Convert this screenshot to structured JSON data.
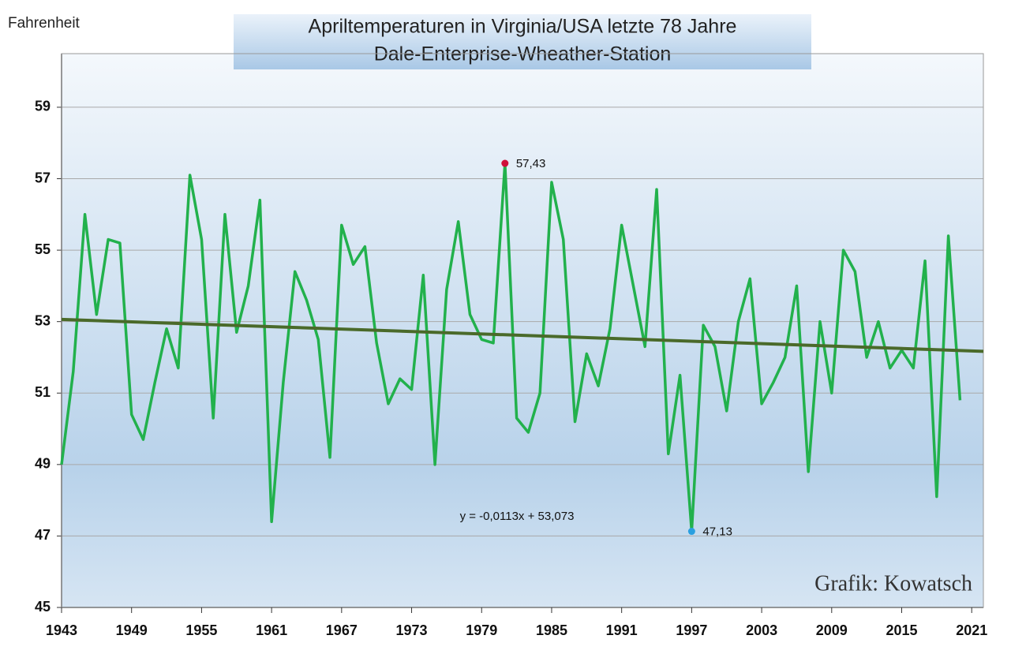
{
  "chart_data": {
    "type": "line",
    "title": "Apriltemperaturen in Virginia/USA letzte 78 Jahre",
    "subtitle": "Dale-Enterprise-Wheather-Station",
    "y_label": "Fahrenheit",
    "credit": "Grafik: Kowatsch",
    "x": [
      1943,
      1944,
      1945,
      1946,
      1947,
      1948,
      1949,
      1950,
      1951,
      1952,
      1953,
      1954,
      1955,
      1956,
      1957,
      1958,
      1959,
      1960,
      1961,
      1962,
      1963,
      1964,
      1965,
      1966,
      1967,
      1968,
      1969,
      1970,
      1971,
      1972,
      1973,
      1974,
      1975,
      1976,
      1977,
      1978,
      1979,
      1980,
      1981,
      1982,
      1983,
      1984,
      1985,
      1986,
      1987,
      1988,
      1989,
      1990,
      1991,
      1992,
      1993,
      1994,
      1995,
      1996,
      1997,
      1998,
      1999,
      2000,
      2001,
      2002,
      2003,
      2004,
      2005,
      2006,
      2007,
      2008,
      2009,
      2010,
      2011,
      2012,
      2013,
      2014,
      2015,
      2016,
      2017,
      2018,
      2019,
      2020
    ],
    "values": [
      49.0,
      51.6,
      56.0,
      53.2,
      55.3,
      55.2,
      50.4,
      49.7,
      51.3,
      52.8,
      51.7,
      57.1,
      55.3,
      50.3,
      56.0,
      52.7,
      54.0,
      56.4,
      47.4,
      51.3,
      54.4,
      53.6,
      52.5,
      49.2,
      55.7,
      54.6,
      55.1,
      52.4,
      50.7,
      51.4,
      51.1,
      54.3,
      49.0,
      53.9,
      55.8,
      53.2,
      52.5,
      52.4,
      57.43,
      50.3,
      49.9,
      51.0,
      56.9,
      55.3,
      50.2,
      52.1,
      51.2,
      52.8,
      55.7,
      54.0,
      52.3,
      56.7,
      49.3,
      51.5,
      47.13,
      52.9,
      52.3,
      50.5,
      53.0,
      54.2,
      50.7,
      51.3,
      52.0,
      54.0,
      48.8,
      53.0,
      51.0,
      55.0,
      54.4,
      52.0,
      53.0,
      51.7,
      52.2,
      51.7,
      54.7,
      48.1,
      55.4,
      50.8
    ],
    "value_labels": [
      null,
      null,
      null,
      null,
      null,
      null,
      null,
      null,
      null,
      null,
      null,
      null,
      null,
      null,
      null,
      null,
      null,
      null,
      null,
      null,
      null,
      null,
      null,
      null,
      null,
      null,
      null,
      null,
      null,
      null,
      null,
      null,
      null,
      null,
      null,
      null,
      null,
      null,
      "57,43",
      null,
      null,
      null,
      null,
      null,
      null,
      null,
      null,
      null,
      null,
      null,
      null,
      null,
      null,
      null,
      "47,13",
      null,
      null,
      null,
      null,
      null,
      null,
      null,
      null,
      null,
      null,
      null,
      null,
      null,
      null,
      null,
      null,
      null,
      null,
      null,
      null,
      null,
      null,
      null
    ],
    "color": "#22b14c",
    "max_color": "#d0103a",
    "min_color": "#2aa0e0",
    "trendline": {
      "slope": -0.0113,
      "intercept": 53.073,
      "label": "y = -0,0113x + 53,073",
      "color": "#4a6a2a"
    },
    "xlim": [
      1943,
      2022
    ],
    "xticks": [
      1943,
      1949,
      1955,
      1961,
      1967,
      1973,
      1979,
      1985,
      1991,
      1997,
      2003,
      2009,
      2015,
      2021
    ],
    "ylim": [
      45,
      60.5
    ],
    "yticks": [
      45,
      47,
      49,
      51,
      53,
      55,
      57,
      59
    ],
    "grid": true
  }
}
